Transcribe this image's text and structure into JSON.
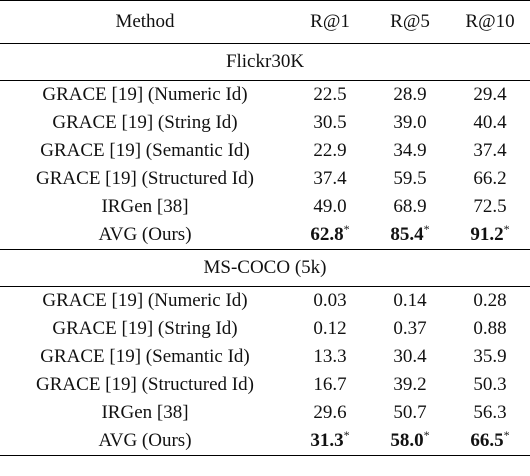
{
  "table": {
    "headers": [
      "Method",
      "R@1",
      "R@5",
      "R@10"
    ],
    "sections": [
      {
        "title": "Flickr30K",
        "rows": [
          {
            "method": "GRACE [19] (Numeric Id)",
            "r1": "22.5",
            "r5": "28.9",
            "r10": "29.4",
            "best": false
          },
          {
            "method": "GRACE [19] (String Id)",
            "r1": "30.5",
            "r5": "39.0",
            "r10": "40.4",
            "best": false
          },
          {
            "method": "GRACE [19] (Semantic Id)",
            "r1": "22.9",
            "r5": "34.9",
            "r10": "37.4",
            "best": false
          },
          {
            "method": "GRACE [19] (Structured Id)",
            "r1": "37.4",
            "r5": "59.5",
            "r10": "66.2",
            "best": false
          },
          {
            "method": "IRGen [38]",
            "r1": "49.0",
            "r5": "68.9",
            "r10": "72.5",
            "best": false
          },
          {
            "method": "AVG (Ours)",
            "r1": "62.8",
            "r5": "85.4",
            "r10": "91.2",
            "best": true,
            "mark": "*"
          }
        ]
      },
      {
        "title": "MS-COCO (5k)",
        "rows": [
          {
            "method": "GRACE [19] (Numeric Id)",
            "r1": "0.03",
            "r5": "0.14",
            "r10": "0.28",
            "best": false
          },
          {
            "method": "GRACE [19] (String Id)",
            "r1": "0.12",
            "r5": "0.37",
            "r10": "0.88",
            "best": false
          },
          {
            "method": "GRACE [19] (Semantic Id)",
            "r1": "13.3",
            "r5": "30.4",
            "r10": "35.9",
            "best": false
          },
          {
            "method": "GRACE [19] (Structured Id)",
            "r1": "16.7",
            "r5": "39.2",
            "r10": "50.3",
            "best": false
          },
          {
            "method": "IRGen [38]",
            "r1": "29.6",
            "r5": "50.7",
            "r10": "56.3",
            "best": false
          },
          {
            "method": "AVG (Ours)",
            "r1": "31.3",
            "r5": "58.0",
            "r10": "66.5",
            "best": true,
            "mark": "*"
          }
        ]
      }
    ]
  }
}
